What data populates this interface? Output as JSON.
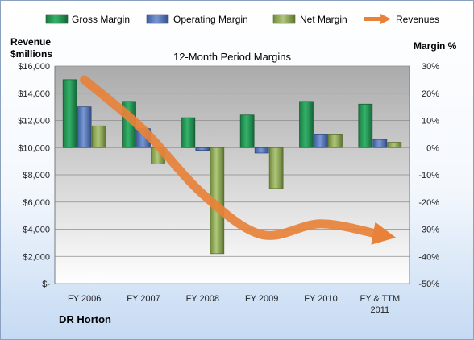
{
  "chart_data": {
    "type": "bar",
    "title": "12-Month Period Margins",
    "categories": [
      "FY 2006",
      "FY 2007",
      "FY 2008",
      "FY 2009",
      "FY 2010",
      "FY & TTM 2011"
    ],
    "series": [
      {
        "name": "Gross Margin",
        "axis": "right",
        "unit": "%",
        "values": [
          25,
          17,
          11,
          12,
          17,
          16
        ],
        "color": "#1f8a4c"
      },
      {
        "name": "Operating Margin",
        "axis": "right",
        "unit": "%",
        "values": [
          15,
          7,
          -1,
          -2,
          5,
          3
        ],
        "color": "#4f72b8"
      },
      {
        "name": "Net Margin",
        "axis": "right",
        "unit": "%",
        "values": [
          8,
          -6,
          -39,
          -15,
          5,
          2
        ],
        "color": "#8fac50"
      },
      {
        "name": "Revenues",
        "type": "line",
        "axis": "left",
        "unit": "$millions",
        "values": [
          15000,
          11300,
          6600,
          3600,
          4400,
          3600
        ],
        "color": "#e8823a"
      }
    ],
    "left_axis": {
      "title_line1": "Revenue",
      "title_line2": "$millions",
      "ylim": [
        0,
        16000
      ],
      "tick_values": [
        0,
        2000,
        4000,
        6000,
        8000,
        10000,
        12000,
        14000,
        16000
      ],
      "tick_labels": [
        "$-",
        "$2,000",
        "$4,000",
        "$6,000",
        "$8,000",
        "$10,000",
        "$12,000",
        "$14,000",
        "$16,000"
      ]
    },
    "right_axis": {
      "title": "Margin %",
      "ylim": [
        -50,
        30
      ],
      "tick_values": [
        -50,
        -40,
        -30,
        -20,
        -10,
        0,
        10,
        20,
        30
      ],
      "tick_labels": [
        "-50%",
        "-40%",
        "-30%",
        "-20%",
        "-10%",
        "0%",
        "10%",
        "20%",
        "30%"
      ]
    },
    "x_tick_labels": [
      "FY 2006",
      "FY 2007",
      "FY 2008",
      "FY 2009",
      "FY 2010",
      "FY & TTM 2011"
    ],
    "legend_position": "top",
    "company_label": "DR Horton",
    "grid": true
  }
}
